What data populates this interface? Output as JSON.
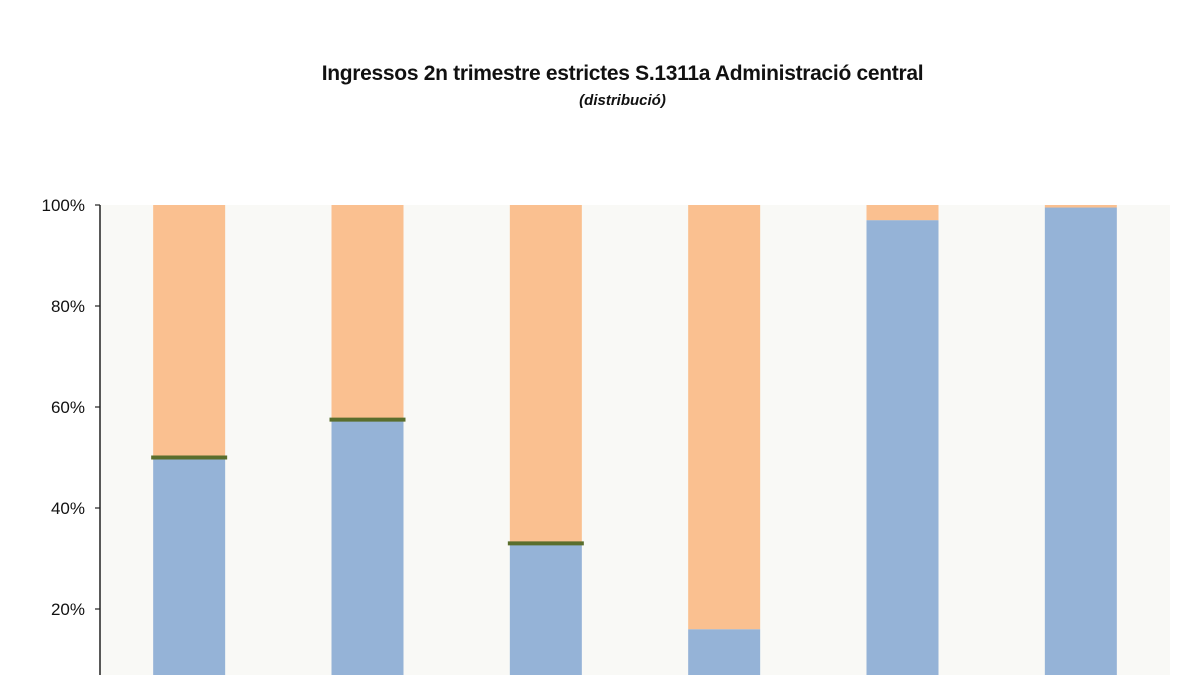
{
  "chart_data": {
    "type": "bar",
    "stacked": true,
    "title": "Ingressos 2n trimestre estrictes  S.1311a Administració central",
    "subtitle": "(distribució)",
    "categories": [
      "",
      "",
      "",
      "",
      "",
      ""
    ],
    "series": [
      {
        "values": [
          50,
          57.5,
          33,
          16,
          97,
          99.5
        ],
        "color": "#95b3d7"
      },
      {
        "values": [
          50,
          42.5,
          67,
          84,
          3,
          0.5
        ],
        "color": "#fac090"
      }
    ],
    "boundary_markers": [
      50,
      57.5,
      33,
      null,
      null,
      null
    ],
    "marker_color": "#5a6e2d",
    "ylim": [
      10,
      100
    ],
    "yticks": [
      "20%",
      "40%",
      "60%",
      "80%",
      "100%"
    ],
    "ytick_values": [
      20,
      40,
      60,
      80,
      100
    ],
    "grid": false,
    "plot_background": "#f9f9f6"
  }
}
